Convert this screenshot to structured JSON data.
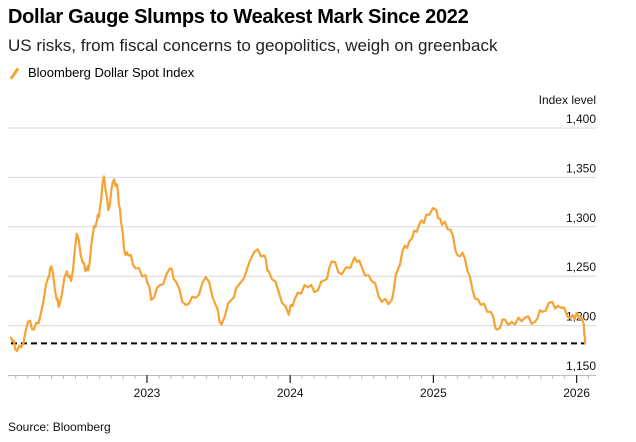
{
  "header": {
    "title": "Dollar Gauge Slumps to Weakest Mark Since 2022",
    "subtitle": "US risks, from fiscal concerns to geopolitics, weigh on greenback"
  },
  "legend": [
    {
      "label": "Bloomberg Dollar Spot Index",
      "color": "#f6a336"
    }
  ],
  "footer": {
    "source": "Source: Bloomberg"
  },
  "chart_data": {
    "type": "line",
    "title": "Dollar Gauge Slumps to Weakest Mark Since 2022",
    "subtitle": "US risks, from fiscal concerns to geopolitics, weigh on greenback",
    "xlabel": "",
    "ylabel": "Index level",
    "ylim": [
      1150,
      1400
    ],
    "xlim": [
      2022.0,
      2026.15
    ],
    "yticks": [
      1150,
      1200,
      1250,
      1300,
      1350,
      1400
    ],
    "ytick_labels": [
      "1,150",
      "1,200",
      "1,250",
      "1,300",
      "1,350",
      "1,400"
    ],
    "xticks": [
      2023,
      2024,
      2025,
      2026
    ],
    "xtick_labels": [
      "2023",
      "2024",
      "2025",
      "2026"
    ],
    "minor_xticks_per_year": 12,
    "grid": "horizontal",
    "legend_position": "top-left",
    "y_axis_position": "right",
    "reference_line": {
      "value": 1182,
      "style": "dashed",
      "color": "#000000",
      "from": 2022.05,
      "to": 2026.06
    },
    "series": [
      {
        "name": "Bloomberg Dollar Spot Index",
        "color": "#f6a336",
        "x": [
          2022.05,
          2022.08,
          2022.12,
          2022.17,
          2022.21,
          2022.26,
          2022.31,
          2022.33,
          2022.37,
          2022.39,
          2022.44,
          2022.47,
          2022.51,
          2022.55,
          2022.58,
          2022.59,
          2022.62,
          2022.65,
          2022.67,
          2022.7,
          2022.73,
          2022.76,
          2022.79,
          2022.81,
          2022.84,
          2022.87,
          2022.92,
          2022.99,
          2023.03,
          2023.09,
          2023.16,
          2023.2,
          2023.27,
          2023.34,
          2023.41,
          2023.48,
          2023.52,
          2023.59,
          2023.64,
          2023.75,
          2023.82,
          2023.85,
          2023.92,
          2023.99,
          2024.03,
          2024.1,
          2024.17,
          2024.24,
          2024.29,
          2024.36,
          2024.45,
          2024.5,
          2024.57,
          2024.64,
          2024.71,
          2024.75,
          2024.8,
          2024.85,
          2024.9,
          2024.95,
          2025.02,
          2025.06,
          2025.12,
          2025.17,
          2025.22,
          2025.27,
          2025.33,
          2025.4,
          2025.45,
          2025.5,
          2025.57,
          2025.64,
          2025.71,
          2025.76,
          2025.83,
          2025.89,
          2025.96,
          2026.0,
          2026.05,
          2026.06
        ],
        "y": [
          1188,
          1176,
          1178,
          1204,
          1196,
          1213,
          1249,
          1260,
          1226,
          1221,
          1255,
          1245,
          1293,
          1264,
          1258,
          1256,
          1291,
          1306,
          1317,
          1351,
          1317,
          1345,
          1343,
          1319,
          1277,
          1271,
          1258,
          1251,
          1226,
          1241,
          1258,
          1245,
          1221,
          1228,
          1249,
          1221,
          1201,
          1226,
          1241,
          1275,
          1271,
          1255,
          1234,
          1211,
          1226,
          1241,
          1234,
          1246,
          1265,
          1252,
          1269,
          1259,
          1245,
          1224,
          1226,
          1256,
          1281,
          1288,
          1302,
          1312,
          1317,
          1302,
          1297,
          1271,
          1268,
          1238,
          1221,
          1214,
          1196,
          1206,
          1201,
          1208,
          1204,
          1214,
          1224,
          1218,
          1208,
          1213,
          1201,
          1182
        ]
      }
    ]
  }
}
